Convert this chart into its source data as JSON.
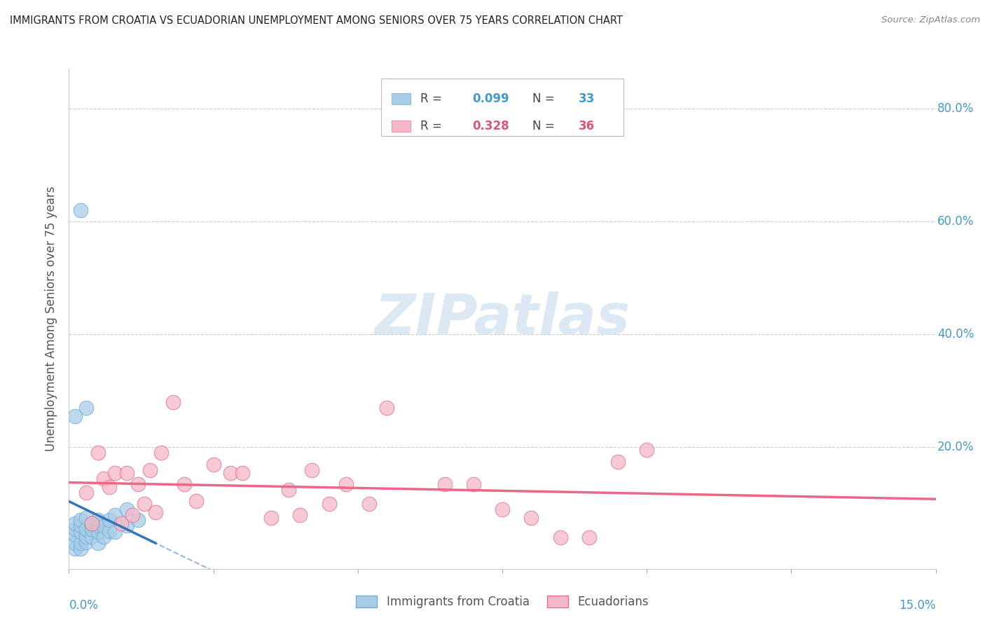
{
  "title": "IMMIGRANTS FROM CROATIA VS ECUADORIAN UNEMPLOYMENT AMONG SENIORS OVER 75 YEARS CORRELATION CHART",
  "source": "Source: ZipAtlas.com",
  "ylabel": "Unemployment Among Seniors over 75 years",
  "xmin": 0.0,
  "xmax": 0.15,
  "ymin": -0.015,
  "ymax": 0.87,
  "color_blue": "#a8cce8",
  "color_blue_edge": "#6aafd6",
  "color_pink": "#f5b8c8",
  "color_pink_edge": "#e07090",
  "color_blue_text": "#4499cc",
  "color_pink_text": "#dd5577",
  "color_trend_blue": "#3377bb",
  "color_trend_pink": "#ee6688",
  "color_dashed": "#88aadd",
  "watermark_text": "ZIPatlas",
  "right_ytick_vals": [
    0.0,
    0.2,
    0.4,
    0.6,
    0.8
  ],
  "right_yticklabels": [
    "",
    "20.0%",
    "40.0%",
    "60.0%",
    "80.0%"
  ],
  "blue_x": [
    0.001,
    0.001,
    0.001,
    0.001,
    0.001,
    0.002,
    0.002,
    0.002,
    0.002,
    0.002,
    0.003,
    0.003,
    0.003,
    0.003,
    0.004,
    0.004,
    0.004,
    0.005,
    0.005,
    0.005,
    0.005,
    0.006,
    0.006,
    0.007,
    0.007,
    0.008,
    0.008,
    0.01,
    0.01,
    0.012,
    0.002,
    0.003,
    0.001
  ],
  "blue_y": [
    0.02,
    0.03,
    0.045,
    0.055,
    0.065,
    0.02,
    0.03,
    0.05,
    0.062,
    0.072,
    0.032,
    0.042,
    0.055,
    0.075,
    0.042,
    0.055,
    0.065,
    0.03,
    0.05,
    0.062,
    0.072,
    0.042,
    0.06,
    0.052,
    0.072,
    0.05,
    0.08,
    0.062,
    0.09,
    0.072,
    0.62,
    0.27,
    0.255
  ],
  "pink_x": [
    0.003,
    0.004,
    0.005,
    0.006,
    0.007,
    0.008,
    0.009,
    0.01,
    0.011,
    0.012,
    0.013,
    0.014,
    0.015,
    0.016,
    0.018,
    0.02,
    0.022,
    0.025,
    0.028,
    0.03,
    0.035,
    0.038,
    0.04,
    0.042,
    0.045,
    0.048,
    0.052,
    0.055,
    0.065,
    0.07,
    0.075,
    0.08,
    0.085,
    0.09,
    0.095,
    0.1
  ],
  "pink_y": [
    0.12,
    0.065,
    0.19,
    0.145,
    0.13,
    0.155,
    0.065,
    0.155,
    0.08,
    0.135,
    0.1,
    0.16,
    0.085,
    0.19,
    0.28,
    0.135,
    0.105,
    0.17,
    0.155,
    0.155,
    0.075,
    0.125,
    0.08,
    0.16,
    0.1,
    0.135,
    0.1,
    0.27,
    0.135,
    0.135,
    0.09,
    0.075,
    0.04,
    0.04,
    0.175,
    0.195
  ],
  "blue_trend_xstart": 0.0,
  "blue_trend_xend": 0.015,
  "dashed_xstart": 0.0,
  "dashed_xend": 0.15
}
